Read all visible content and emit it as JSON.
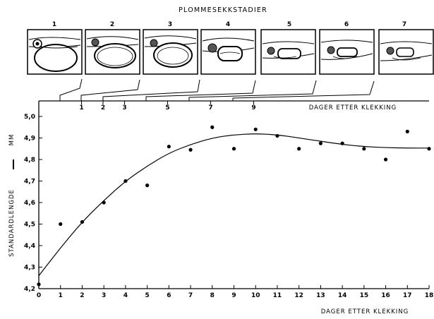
{
  "figure_title": "PLOMMESEKKSTADIER",
  "stages": [
    {
      "label": "1",
      "day": 1
    },
    {
      "label": "2",
      "day": 2
    },
    {
      "label": "3",
      "day": 3
    },
    {
      "label": "4",
      "day": 5
    },
    {
      "label": "5",
      "day": 7
    },
    {
      "label": "6",
      "day": 9
    },
    {
      "label": "7",
      "day": 9
    }
  ],
  "top_axis": {
    "label": "DAGER ETTER KLEKKING",
    "tick_labels": [
      "1",
      "2",
      "3",
      "5",
      "7",
      "9"
    ],
    "tick_days": [
      1,
      2,
      3,
      5,
      7,
      9
    ]
  },
  "chart_data": {
    "type": "scatter",
    "title": "PLOMMESEKKSTADIER",
    "xlabel": "DAGER ETTER KLEKKING",
    "ylabel": "STANDARDLENGDE",
    "yunit": "MM",
    "xlim": [
      0,
      18
    ],
    "ylim": [
      4.2,
      5.0
    ],
    "x_ticks": [
      0,
      1,
      2,
      3,
      4,
      5,
      6,
      7,
      8,
      9,
      10,
      11,
      12,
      13,
      14,
      15,
      16,
      17,
      18
    ],
    "x_tick_labels": [
      "0",
      "1",
      "2",
      "3",
      "4",
      "5",
      "6",
      "7",
      "8",
      "9",
      "10",
      "11",
      "12",
      "13",
      "14",
      "15",
      "16",
      "17",
      "18"
    ],
    "y_ticks": [
      4.2,
      4.3,
      4.4,
      4.5,
      4.6,
      4.7,
      4.8,
      4.9,
      5.0
    ],
    "y_tick_labels": [
      "4,2",
      "4,3",
      "4,4",
      "4,5",
      "4,6",
      "4,7",
      "4,8",
      "4,9",
      "5,0"
    ],
    "points": [
      {
        "x": 0,
        "y": 4.22
      },
      {
        "x": 1,
        "y": 4.5
      },
      {
        "x": 2,
        "y": 4.51
      },
      {
        "x": 3,
        "y": 4.6
      },
      {
        "x": 4,
        "y": 4.7
      },
      {
        "x": 5,
        "y": 4.68
      },
      {
        "x": 6,
        "y": 4.86
      },
      {
        "x": 7,
        "y": 4.845
      },
      {
        "x": 8,
        "y": 4.95
      },
      {
        "x": 9,
        "y": 4.85
      },
      {
        "x": 10,
        "y": 4.94
      },
      {
        "x": 11,
        "y": 4.91
      },
      {
        "x": 12,
        "y": 4.85
      },
      {
        "x": 13,
        "y": 4.875
      },
      {
        "x": 14,
        "y": 4.875
      },
      {
        "x": 15,
        "y": 4.85
      },
      {
        "x": 16,
        "y": 4.8
      },
      {
        "x": 17,
        "y": 4.93
      },
      {
        "x": 18,
        "y": 4.85
      }
    ],
    "fit_curve": [
      {
        "x": 0,
        "y": 4.26
      },
      {
        "x": 1,
        "y": 4.39
      },
      {
        "x": 2,
        "y": 4.51
      },
      {
        "x": 3,
        "y": 4.61
      },
      {
        "x": 4,
        "y": 4.7
      },
      {
        "x": 5,
        "y": 4.77
      },
      {
        "x": 6,
        "y": 4.83
      },
      {
        "x": 7,
        "y": 4.87
      },
      {
        "x": 8,
        "y": 4.9
      },
      {
        "x": 9,
        "y": 4.915
      },
      {
        "x": 10,
        "y": 4.92
      },
      {
        "x": 11,
        "y": 4.915
      },
      {
        "x": 12,
        "y": 4.9
      },
      {
        "x": 13,
        "y": 4.885
      },
      {
        "x": 14,
        "y": 4.87
      },
      {
        "x": 15,
        "y": 4.86
      },
      {
        "x": 16,
        "y": 4.855
      },
      {
        "x": 17,
        "y": 4.853
      },
      {
        "x": 18,
        "y": 4.853
      }
    ],
    "grid": false,
    "legend": "none"
  }
}
